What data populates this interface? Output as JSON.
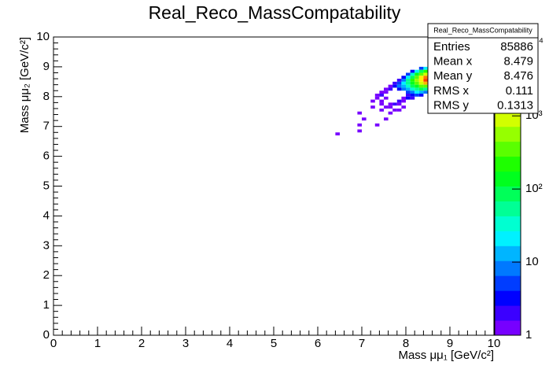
{
  "chart_data": {
    "type": "heatmap",
    "title": "Real_Reco_MassCompatability",
    "x_label": "Mass μμ₁ [GeV/c²]",
    "y_label": "Mass μμ₂ [GeV/c²]",
    "xlim": [
      0,
      10
    ],
    "xticks": [
      0,
      1,
      2,
      3,
      4,
      5,
      6,
      7,
      8,
      9,
      10
    ],
    "ylim": [
      0,
      10
    ],
    "yticks": [
      0,
      1,
      2,
      3,
      4,
      5,
      6,
      7,
      8,
      9,
      10
    ],
    "zlim": [
      1,
      12000
    ],
    "zlog": true,
    "zticks": [
      1,
      10,
      {
        "value": 100,
        "label": "10²"
      },
      {
        "value": 1000,
        "label": "10³"
      },
      {
        "value": 10000,
        "label": "10⁴"
      }
    ],
    "x": [
      8.3,
      8.4,
      8.5,
      8.1,
      8.2,
      8.3,
      8.4,
      8.5,
      8.0,
      8.1,
      8.2,
      8.3,
      8.4,
      8.5,
      7.9,
      8.0,
      8.1,
      8.2,
      8.3,
      8.4,
      8.5,
      7.8,
      7.9,
      8.0,
      8.1,
      8.2,
      8.3,
      8.4,
      8.5,
      7.7,
      7.8,
      7.9,
      8.0,
      8.1,
      8.2,
      8.3,
      8.4,
      8.5,
      7.6,
      7.7,
      7.8,
      7.9,
      8.0,
      8.1,
      8.2,
      8.3,
      8.4,
      8.5,
      7.5,
      7.6,
      7.8,
      7.9,
      8.0,
      8.1,
      8.2,
      8.3,
      8.4,
      8.5,
      7.4,
      7.5,
      8.0,
      8.1,
      8.2,
      8.3,
      8.4,
      7.3,
      7.4,
      8.0,
      8.1,
      8.2,
      8.3,
      7.3,
      7.5,
      7.9,
      8.0,
      8.1,
      7.2,
      7.4,
      7.8,
      7.9,
      7.4,
      7.6,
      7.7,
      7.8,
      7.2,
      7.5,
      7.6,
      7.9,
      7.4,
      7.7,
      7.8,
      6.9,
      7.6,
      7.0,
      7.5,
      6.9,
      7.3,
      6.9,
      6.4
    ],
    "y": [
      8.9,
      8.9,
      8.9,
      8.8,
      8.8,
      8.8,
      8.8,
      8.8,
      8.7,
      8.7,
      8.7,
      8.7,
      8.7,
      8.7,
      8.6,
      8.6,
      8.6,
      8.6,
      8.6,
      8.6,
      8.6,
      8.5,
      8.5,
      8.5,
      8.5,
      8.5,
      8.5,
      8.5,
      8.5,
      8.4,
      8.4,
      8.4,
      8.4,
      8.4,
      8.4,
      8.4,
      8.4,
      8.4,
      8.3,
      8.3,
      8.3,
      8.3,
      8.3,
      8.3,
      8.3,
      8.3,
      8.3,
      8.3,
      8.2,
      8.2,
      8.2,
      8.2,
      8.2,
      8.2,
      8.2,
      8.2,
      8.2,
      8.2,
      8.1,
      8.1,
      8.1,
      8.1,
      8.1,
      8.1,
      8.1,
      8.0,
      8.0,
      8.0,
      8.0,
      8.0,
      8.0,
      7.9,
      7.9,
      7.9,
      7.9,
      7.9,
      7.8,
      7.8,
      7.8,
      7.8,
      7.7,
      7.7,
      7.7,
      7.7,
      7.6,
      7.6,
      7.6,
      7.6,
      7.5,
      7.5,
      7.5,
      7.4,
      7.4,
      7.2,
      7.2,
      7.0,
      7.0,
      6.8,
      6.7
    ],
    "values": [
      5,
      20,
      40,
      3,
      20,
      80,
      200,
      300,
      5,
      30,
      150,
      400,
      1000,
      1500,
      4,
      20,
      100,
      300,
      1200,
      3000,
      3000,
      2,
      10,
      50,
      200,
      500,
      1500,
      6000,
      4000,
      2,
      6,
      20,
      60,
      150,
      400,
      800,
      2000,
      2000,
      1,
      3,
      8,
      15,
      40,
      80,
      150,
      300,
      400,
      300,
      1,
      2,
      3,
      8,
      15,
      30,
      50,
      80,
      60,
      40,
      1,
      1,
      5,
      10,
      20,
      15,
      10,
      1,
      2,
      2,
      4,
      5,
      3,
      1,
      1,
      1,
      3,
      2,
      1,
      1,
      2,
      1,
      1,
      1,
      2,
      1,
      1,
      1,
      1,
      1,
      1,
      1,
      1,
      1,
      1,
      1,
      1,
      1,
      1,
      1,
      1
    ],
    "stats": {
      "title": "Real_Reco_MassCompatability",
      "rows": [
        [
          "Entries",
          85886
        ],
        [
          "Mean x",
          8.479
        ],
        [
          "Mean y",
          8.476
        ],
        [
          "RMS x",
          0.111
        ],
        [
          "RMS y",
          0.1313
        ]
      ]
    }
  }
}
